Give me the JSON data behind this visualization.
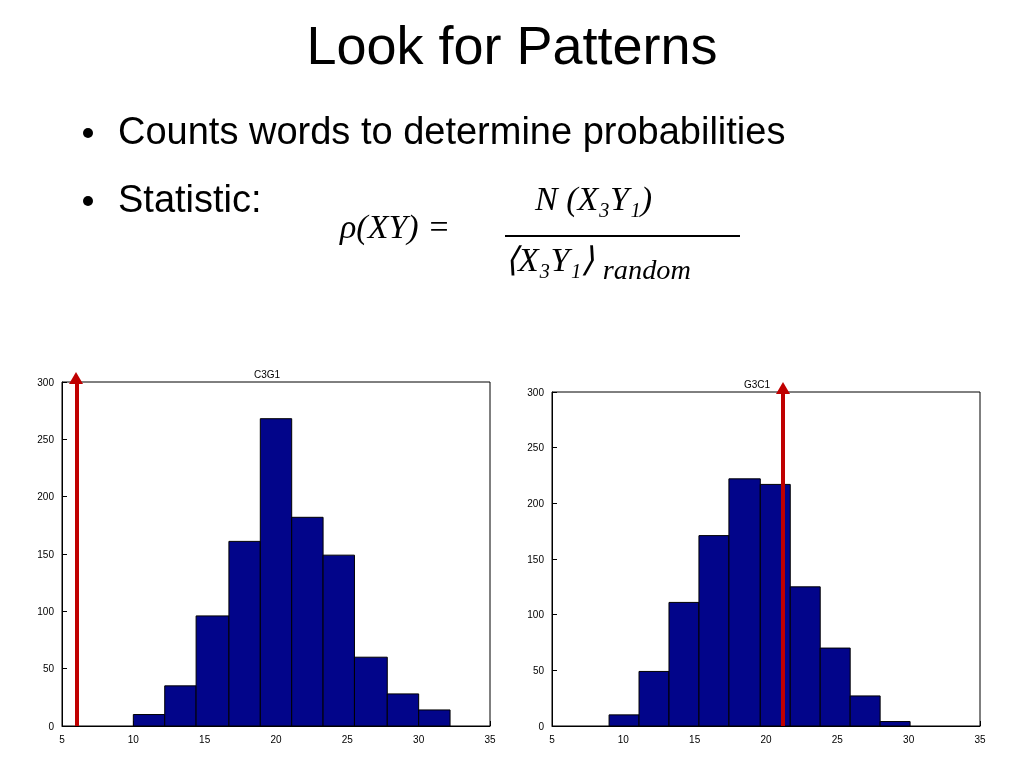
{
  "chart_data": [
    {
      "type": "other",
      "title": "Look for Patterns",
      "annotations": [
        "Counts words to determine probabilities",
        "Statistic:",
        "ρ(XY) =",
        "N (X₃Y₁)",
        "⟨X₃Y₁⟩ $_{random}$"
      ]
    },
    {
      "type": "histogram",
      "title": "C3G1",
      "bins": [
        10,
        12.2,
        14.4,
        16.7,
        18.9,
        21.1,
        23.3,
        25.5,
        27.8,
        30,
        32.2
      ],
      "values": [
        10,
        35,
        96,
        161,
        268,
        182,
        149,
        60,
        28,
        14
      ],
      "color": "#02058a",
      "xlim": [
        5,
        35
      ],
      "xticks": [
        5,
        10,
        15,
        20,
        25,
        30,
        35
      ],
      "ylim": [
        0,
        300
      ],
      "yticks": [
        0,
        50,
        100,
        150,
        200,
        250,
        300
      ],
      "grid": false,
      "ref_lines": [
        {
          "axis": "x",
          "value": 6,
          "color": "#c00000"
        }
      ]
    },
    {
      "type": "histogram",
      "title": "G3C1",
      "bins": [
        9,
        11.1,
        13.2,
        15.3,
        17.4,
        19.6,
        21.7,
        23.8,
        25.9,
        28,
        30.1
      ],
      "values": [
        10,
        49,
        111,
        171,
        222,
        217,
        125,
        70,
        27,
        4
      ],
      "color": "#02058a",
      "xlim": [
        5,
        35
      ],
      "xticks": [
        5,
        10,
        15,
        20,
        25,
        30,
        35
      ],
      "ylim": [
        0,
        300
      ],
      "yticks": [
        0,
        50,
        100,
        150,
        200,
        250,
        300
      ],
      "grid": false,
      "ref_lines": [
        {
          "axis": "x",
          "value": 21.2,
          "color": "#c00000"
        }
      ]
    }
  ]
}
